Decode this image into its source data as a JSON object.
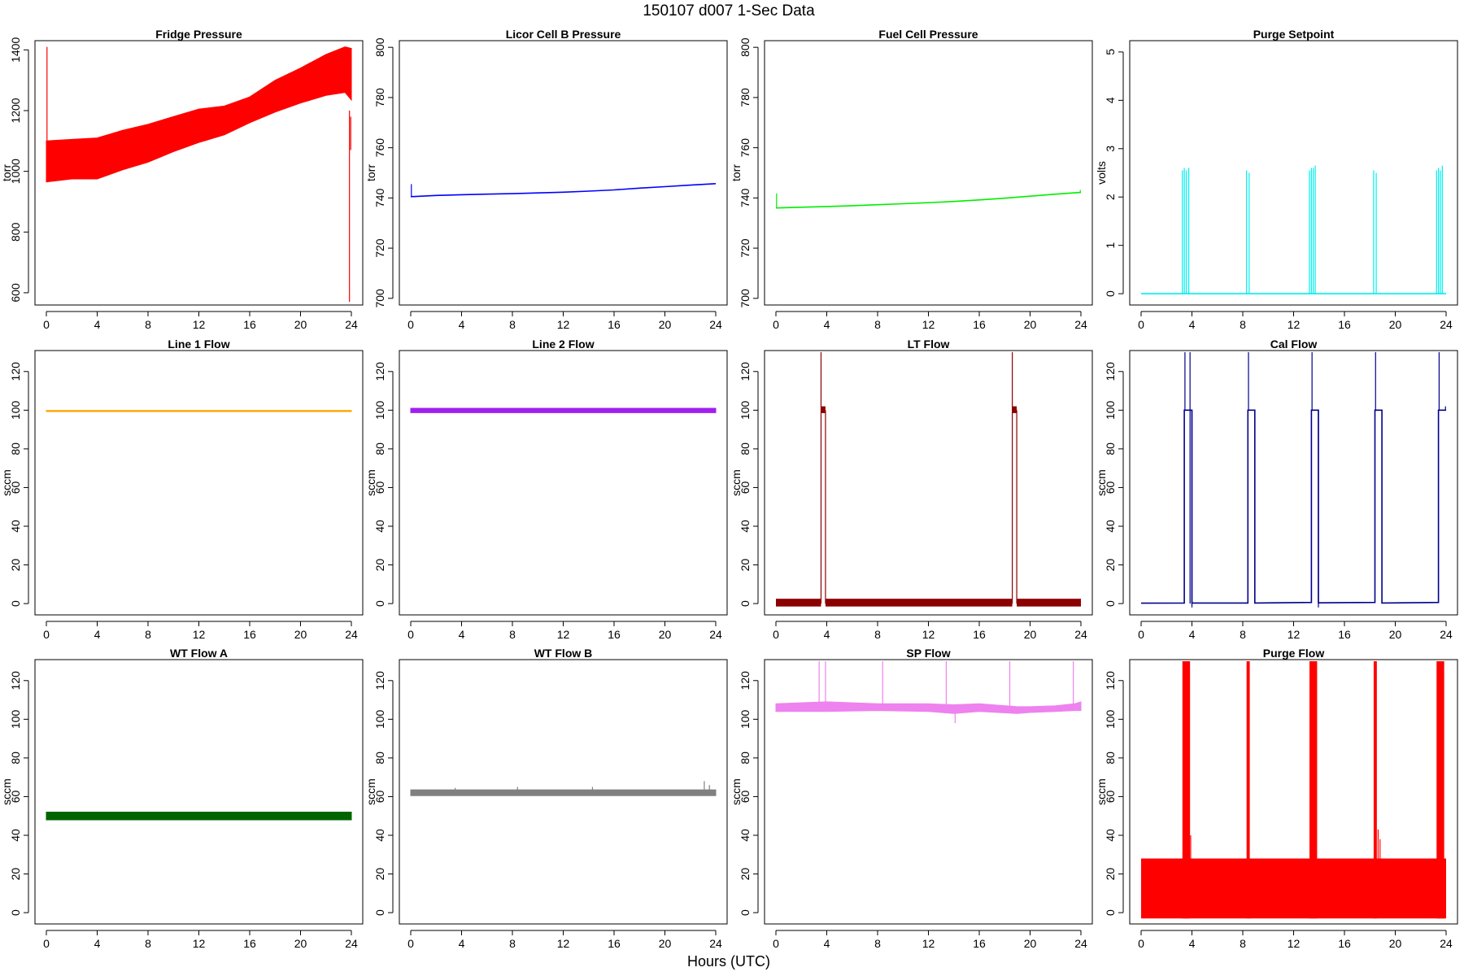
{
  "title": "150107   d007   1-Sec Data",
  "xlabel": "Hours (UTC)",
  "chart_data": [
    {
      "type": "line",
      "title": "Fridge Pressure",
      "ylabel": "torr",
      "color": "#ff0000",
      "xlim": [
        0,
        24
      ],
      "ylim": [
        565,
        1425
      ],
      "xticks": [
        0,
        4,
        8,
        12,
        16,
        20,
        24
      ],
      "yticks": [
        600,
        800,
        1000,
        1200,
        1400
      ],
      "band": {
        "x": [
          0,
          2,
          4,
          6,
          8,
          10,
          12,
          14,
          16,
          18,
          20,
          22,
          23.5,
          24
        ],
        "low": [
          965,
          975,
          975,
          1005,
          1030,
          1065,
          1095,
          1120,
          1160,
          1195,
          1225,
          1250,
          1260,
          1235
        ],
        "high": [
          1100,
          1105,
          1110,
          1135,
          1155,
          1180,
          1205,
          1215,
          1245,
          1300,
          1340,
          1385,
          1410,
          1405
        ]
      },
      "spikes": [
        {
          "x": 0.05,
          "y0": 1000,
          "y1": 1410
        },
        {
          "x": 23.85,
          "y0": 1200,
          "y1": 570
        },
        {
          "x": 23.95,
          "y0": 1180,
          "y1": 1070
        }
      ]
    },
    {
      "type": "line",
      "title": "Licor Cell B Pressure",
      "ylabel": "torr",
      "color": "#0000ff",
      "xlim": [
        0,
        24
      ],
      "ylim": [
        698,
        802
      ],
      "xticks": [
        0,
        4,
        8,
        12,
        16,
        20,
        24
      ],
      "yticks": [
        700,
        720,
        740,
        760,
        780,
        800
      ],
      "series": {
        "x": [
          0,
          2,
          4,
          6,
          8,
          10,
          12,
          14,
          16,
          18,
          20,
          22,
          24
        ],
        "y": [
          740.5,
          741,
          741.3,
          741.5,
          741.7,
          742,
          742.3,
          742.7,
          743.2,
          743.9,
          744.5,
          745.1,
          745.7
        ]
      },
      "spikes": [
        {
          "x": 0.05,
          "y0": 740.5,
          "y1": 745.5
        }
      ]
    },
    {
      "type": "line",
      "title": "Fuel Cell Pressure",
      "ylabel": "torr",
      "color": "#00ee00",
      "xlim": [
        0,
        24
      ],
      "ylim": [
        698,
        802
      ],
      "xticks": [
        0,
        4,
        8,
        12,
        16,
        20,
        24
      ],
      "yticks": [
        700,
        720,
        740,
        760,
        780,
        800
      ],
      "series": {
        "x": [
          0,
          2,
          4,
          6,
          8,
          10,
          12,
          14,
          16,
          18,
          20,
          22,
          24
        ],
        "y": [
          736,
          736.3,
          736.6,
          736.9,
          737.3,
          737.7,
          738.1,
          738.6,
          739.2,
          739.9,
          740.7,
          741.5,
          742.2
        ]
      },
      "spikes": [
        {
          "x": 0.05,
          "y0": 736,
          "y1": 741.8
        },
        {
          "x": 23.95,
          "y0": 742,
          "y1": 743.2
        }
      ]
    },
    {
      "type": "line",
      "title": "Purge Setpoint",
      "ylabel": "volts",
      "color": "#00eeee",
      "xlim": [
        0,
        24
      ],
      "ylim": [
        -0.2,
        5.2
      ],
      "xticks": [
        0,
        4,
        8,
        12,
        16,
        20,
        24
      ],
      "yticks": [
        0,
        1,
        2,
        3,
        4,
        5
      ],
      "baseline": 0,
      "spikes": [
        {
          "x": 3.25,
          "y0": 0,
          "y1": 2.55
        },
        {
          "x": 3.4,
          "y0": 0,
          "y1": 2.6
        },
        {
          "x": 3.55,
          "y0": 0,
          "y1": 2.55
        },
        {
          "x": 3.75,
          "y0": 0,
          "y1": 2.6
        },
        {
          "x": 8.3,
          "y0": 0,
          "y1": 2.55
        },
        {
          "x": 8.5,
          "y0": 0,
          "y1": 2.5
        },
        {
          "x": 13.25,
          "y0": 0,
          "y1": 2.55
        },
        {
          "x": 13.4,
          "y0": 0,
          "y1": 2.6
        },
        {
          "x": 13.55,
          "y0": 0,
          "y1": 2.6
        },
        {
          "x": 13.7,
          "y0": 0,
          "y1": 2.65
        },
        {
          "x": 18.3,
          "y0": 0,
          "y1": 2.55
        },
        {
          "x": 18.5,
          "y0": 0,
          "y1": 2.5
        },
        {
          "x": 23.25,
          "y0": 0,
          "y1": 2.55
        },
        {
          "x": 23.4,
          "y0": 0,
          "y1": 2.6
        },
        {
          "x": 23.55,
          "y0": 0,
          "y1": 2.55
        },
        {
          "x": 23.7,
          "y0": 0,
          "y1": 2.65
        }
      ]
    },
    {
      "type": "line",
      "title": "Line 1 Flow",
      "ylabel": "sccm",
      "color": "#ffa500",
      "xlim": [
        0,
        24
      ],
      "ylim": [
        -5,
        130
      ],
      "xticks": [
        0,
        4,
        8,
        12,
        16,
        20,
        24
      ],
      "yticks": [
        0,
        20,
        40,
        60,
        80,
        100,
        120
      ],
      "band": {
        "x": [
          0,
          24
        ],
        "low": [
          99.3,
          99.3
        ],
        "high": [
          99.9,
          99.9
        ]
      }
    },
    {
      "type": "line",
      "title": "Line 2 Flow",
      "ylabel": "sccm",
      "color": "#a020f0",
      "xlim": [
        0,
        24
      ],
      "ylim": [
        -5,
        130
      ],
      "xticks": [
        0,
        4,
        8,
        12,
        16,
        20,
        24
      ],
      "yticks": [
        0,
        20,
        40,
        60,
        80,
        100,
        120
      ],
      "band": {
        "x": [
          0,
          24
        ],
        "low": [
          98.7,
          98.7
        ],
        "high": [
          101,
          101
        ]
      }
    },
    {
      "type": "line",
      "title": "LT Flow",
      "ylabel": "sccm",
      "color": "#8b0000",
      "xlim": [
        0,
        24
      ],
      "ylim": [
        -5,
        130
      ],
      "xticks": [
        0,
        4,
        8,
        12,
        16,
        20,
        24
      ],
      "yticks": [
        0,
        20,
        40,
        60,
        80,
        100,
        120
      ],
      "bands": [
        {
          "x0": 0,
          "x1": 3.55,
          "low": -1.5,
          "high": 2.5
        },
        {
          "x0": 3.9,
          "x1": 18.6,
          "low": -1.5,
          "high": 2.5
        },
        {
          "x0": 18.95,
          "x1": 24,
          "low": -1.5,
          "high": 2.5
        },
        {
          "x0": 3.55,
          "x1": 3.9,
          "low": 98.5,
          "high": 102
        },
        {
          "x0": 18.6,
          "x1": 18.95,
          "low": 98.5,
          "high": 102
        }
      ],
      "spikes": [
        {
          "x": 3.55,
          "y0": 0,
          "y1": 130
        },
        {
          "x": 3.9,
          "y0": 0,
          "y1": 100
        },
        {
          "x": 18.6,
          "y0": 0,
          "y1": 130
        },
        {
          "x": 18.95,
          "y0": 0,
          "y1": 100
        }
      ]
    },
    {
      "type": "line",
      "title": "Cal Flow",
      "ylabel": "sccm",
      "color": "#00008b",
      "xlim": [
        0,
        24
      ],
      "ylim": [
        -5,
        130
      ],
      "xticks": [
        0,
        4,
        8,
        12,
        16,
        20,
        24
      ],
      "yticks": [
        0,
        20,
        40,
        60,
        80,
        100,
        120
      ],
      "series": {
        "x": [
          0,
          3.4,
          3.4,
          4.0,
          4.0,
          8.4,
          8.4,
          8.95,
          8.95,
          13.4,
          13.4,
          13.95,
          13.95,
          18.4,
          18.4,
          18.95,
          18.95,
          23.4,
          23.4,
          24
        ],
        "y": [
          0.2,
          0.3,
          100,
          100,
          0.3,
          0.3,
          100,
          100,
          0.3,
          0.6,
          100,
          100,
          0.4,
          0.6,
          100,
          100,
          0.3,
          0.6,
          100,
          100
        ]
      },
      "spikes": [
        {
          "x": 3.45,
          "y0": 100,
          "y1": 130
        },
        {
          "x": 3.85,
          "y0": 0,
          "y1": 130
        },
        {
          "x": 4.0,
          "y0": -2,
          "y1": 100
        },
        {
          "x": 8.45,
          "y0": 100,
          "y1": 130
        },
        {
          "x": 13.45,
          "y0": 100,
          "y1": 130
        },
        {
          "x": 13.95,
          "y0": -2,
          "y1": 100
        },
        {
          "x": 18.45,
          "y0": 100,
          "y1": 130
        },
        {
          "x": 23.45,
          "y0": 100,
          "y1": 130
        },
        {
          "x": 23.95,
          "y0": 100,
          "y1": 102
        }
      ]
    },
    {
      "type": "line",
      "title": "WT Flow A",
      "ylabel": "sccm",
      "color": "#006400",
      "xlim": [
        0,
        24
      ],
      "ylim": [
        -5,
        130
      ],
      "xticks": [
        0,
        4,
        8,
        12,
        16,
        20,
        24
      ],
      "yticks": [
        0,
        20,
        40,
        60,
        80,
        100,
        120
      ],
      "band": {
        "x": [
          0,
          24
        ],
        "low": [
          48,
          48
        ],
        "high": [
          52,
          52
        ]
      }
    },
    {
      "type": "line",
      "title": "WT Flow B",
      "ylabel": "sccm",
      "color": "#808080",
      "xlim": [
        0,
        24
      ],
      "ylim": [
        -5,
        130
      ],
      "xticks": [
        0,
        4,
        8,
        12,
        16,
        20,
        24
      ],
      "yticks": [
        0,
        20,
        40,
        60,
        80,
        100,
        120
      ],
      "band": {
        "x": [
          0,
          24
        ],
        "low": [
          60.5,
          60.5
        ],
        "high": [
          63.5,
          63.5
        ]
      },
      "spikes": [
        {
          "x": 3.5,
          "y0": 62,
          "y1": 64.5
        },
        {
          "x": 8.4,
          "y0": 62,
          "y1": 65
        },
        {
          "x": 14.3,
          "y0": 62,
          "y1": 65
        },
        {
          "x": 23.1,
          "y0": 62,
          "y1": 68
        },
        {
          "x": 23.5,
          "y0": 62,
          "y1": 66
        }
      ]
    },
    {
      "type": "line",
      "title": "SP Flow",
      "ylabel": "sccm",
      "color": "#ee82ee",
      "xlim": [
        0,
        24
      ],
      "ylim": [
        -5,
        130
      ],
      "xticks": [
        0,
        4,
        8,
        12,
        16,
        20,
        24
      ],
      "yticks": [
        0,
        20,
        40,
        60,
        80,
        100,
        120
      ],
      "band": {
        "x": [
          0,
          4,
          8,
          12,
          14,
          16,
          19,
          20,
          22,
          23.5,
          24
        ],
        "low": [
          104,
          104,
          104.5,
          104,
          103,
          104,
          103,
          103.5,
          104,
          104.5,
          104.5
        ],
        "high": [
          108,
          109,
          108,
          108,
          107.5,
          108,
          106.5,
          106.5,
          107,
          108,
          109
        ]
      },
      "spikes": [
        {
          "x": 3.4,
          "y0": 106,
          "y1": 130
        },
        {
          "x": 3.9,
          "y0": 106,
          "y1": 130
        },
        {
          "x": 8.4,
          "y0": 106,
          "y1": 130
        },
        {
          "x": 13.4,
          "y0": 106,
          "y1": 130
        },
        {
          "x": 18.4,
          "y0": 106,
          "y1": 130
        },
        {
          "x": 23.4,
          "y0": 106,
          "y1": 130
        },
        {
          "x": 14.1,
          "y0": 104,
          "y1": 98
        }
      ]
    },
    {
      "type": "line",
      "title": "Purge Flow",
      "ylabel": "sccm",
      "color": "#ff0000",
      "xlim": [
        0,
        24
      ],
      "ylim": [
        -5,
        130
      ],
      "xticks": [
        0,
        4,
        8,
        12,
        16,
        20,
        24
      ],
      "yticks": [
        0,
        20,
        40,
        60,
        80,
        100,
        120
      ],
      "bands": [
        {
          "x0": 0,
          "x1": 24,
          "low": -3,
          "high": 28
        },
        {
          "x0": 3.25,
          "x1": 3.85,
          "low": -3,
          "high": 130
        },
        {
          "x0": 8.3,
          "x1": 8.55,
          "low": -3,
          "high": 130
        },
        {
          "x0": 13.25,
          "x1": 13.85,
          "low": -3,
          "high": 130
        },
        {
          "x0": 18.3,
          "x1": 18.55,
          "low": -3,
          "high": 130
        },
        {
          "x0": 23.25,
          "x1": 23.85,
          "low": -3,
          "high": 130
        }
      ],
      "spikes": [
        {
          "x": 3.9,
          "y0": 25,
          "y1": 40
        },
        {
          "x": 18.65,
          "y0": 25,
          "y1": 43
        },
        {
          "x": 18.8,
          "y0": 25,
          "y1": 38
        }
      ]
    }
  ]
}
